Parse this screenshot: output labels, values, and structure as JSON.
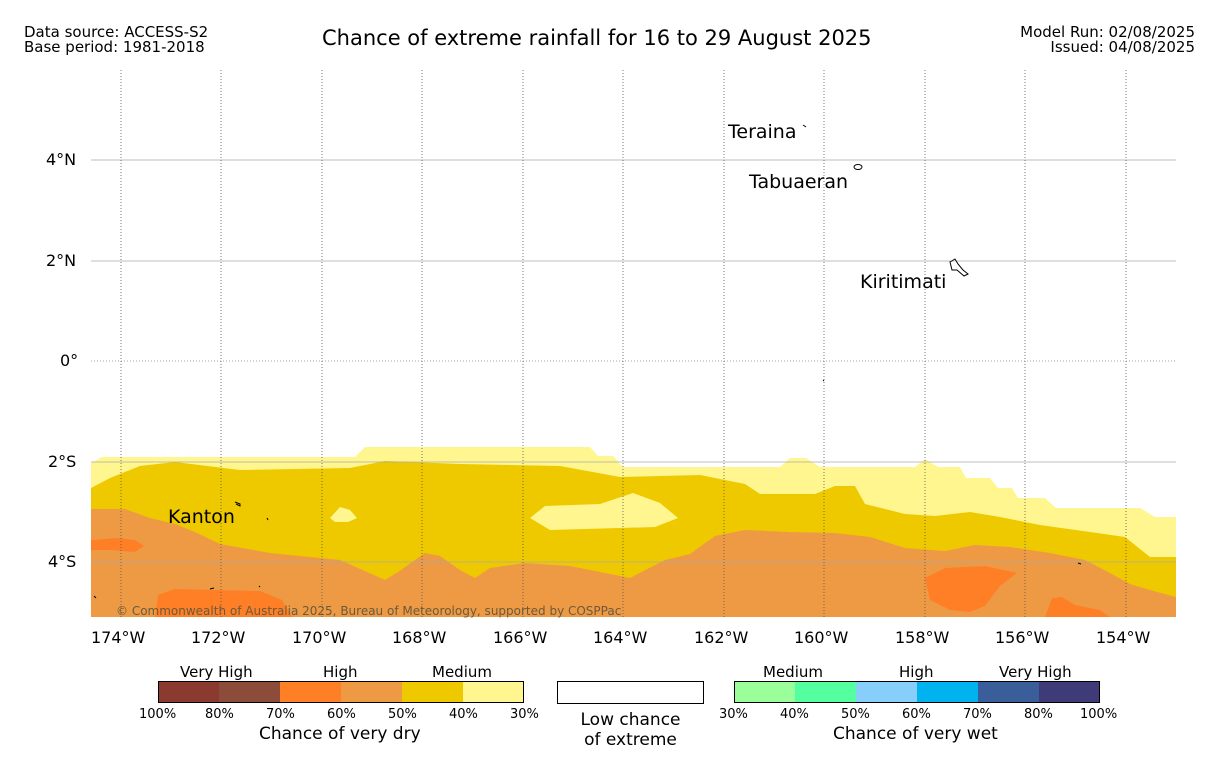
{
  "header": {
    "data_source": "Data source: ACCESS-S2",
    "base_period": "Base period: 1981-2018",
    "title": "Chance of extreme rainfall for 16 to 29 August 2025",
    "model_run": "Model Run: 02/08/2025",
    "issued": "Issued: 04/08/2025"
  },
  "map": {
    "lat_labels": [
      "4°N",
      "2°N",
      "0°",
      "2°S",
      "4°S"
    ],
    "lon_labels": [
      "174°W",
      "172°W",
      "170°W",
      "168°W",
      "166°W",
      "164°W",
      "162°W",
      "160°W",
      "158°W",
      "156°W",
      "154°W"
    ],
    "places": [
      "Teraina",
      "Tabuaeran",
      "Kiritimati",
      "Kanton"
    ],
    "copyright": "© Commonwealth of Australia 2025, Bureau of Meteorology, supported by COSPPac"
  },
  "legend": {
    "dry": {
      "categories": [
        "Very High",
        "High",
        "Medium"
      ],
      "colors": [
        "#8b3a2f",
        "#8b4c3a",
        "#ff7f27",
        "#ee9a45",
        "#eec900",
        "#fff68f"
      ],
      "ticks": [
        "100%",
        "80%",
        "70%",
        "60%",
        "50%",
        "40%",
        "30%"
      ],
      "caption": "Chance of very dry"
    },
    "low": {
      "caption_line1": "Low chance",
      "caption_line2": "of extreme"
    },
    "wet": {
      "categories": [
        "Medium",
        "High",
        "Very High"
      ],
      "colors": [
        "#9aff9a",
        "#54ff9f",
        "#87cefa",
        "#00b2ee",
        "#3a5e99",
        "#3f3a78"
      ],
      "ticks": [
        "30%",
        "40%",
        "50%",
        "60%",
        "70%",
        "80%",
        "100%"
      ],
      "caption": "Chance of very wet"
    }
  }
}
